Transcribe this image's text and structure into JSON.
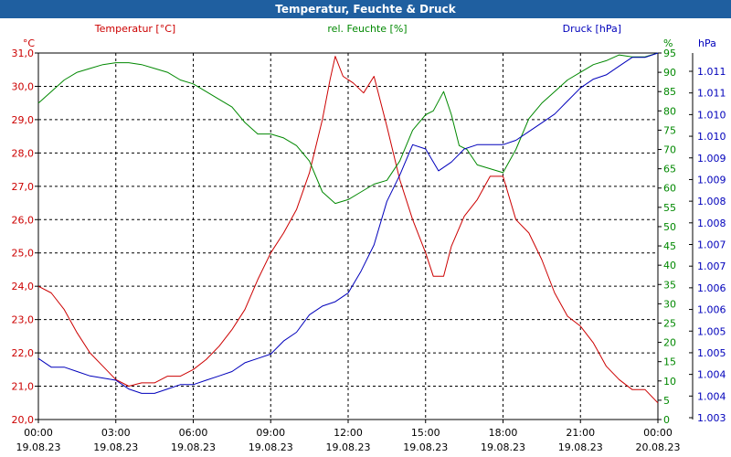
{
  "window": {
    "title": "Temperatur, Feuchte & Druck"
  },
  "colors": {
    "temperature": "#cc0000",
    "humidity": "#008800",
    "pressure": "#0000bb",
    "title_bar": "#1f5fa0"
  },
  "chart_data": {
    "type": "line",
    "title": "Temperatur, Feuchte & Druck",
    "grid": true,
    "x_ticks": [
      {
        "time": "00:00",
        "date": "19.08.23"
      },
      {
        "time": "03:00",
        "date": "19.08.23"
      },
      {
        "time": "06:00",
        "date": "19.08.23"
      },
      {
        "time": "09:00",
        "date": "19.08.23"
      },
      {
        "time": "12:00",
        "date": "19.08.23"
      },
      {
        "time": "15:00",
        "date": "19.08.23"
      },
      {
        "time": "18:00",
        "date": "19.08.23"
      },
      {
        "time": "21:00",
        "date": "19.08.23"
      },
      {
        "time": "00:00",
        "date": "20.08.23"
      }
    ],
    "x_range_hours": [
      0,
      24
    ],
    "axes": {
      "temperature": {
        "unit": "°C",
        "label": "Temperatur [°C]",
        "range": [
          20.0,
          31.0
        ],
        "ticks": [
          "20,0",
          "21,0",
          "22,0",
          "23,0",
          "24,0",
          "25,0",
          "26,0",
          "27,0",
          "28,0",
          "29,0",
          "30,0",
          "31,0"
        ]
      },
      "humidity": {
        "unit": "%",
        "label": "rel. Feuchte [%]",
        "range": [
          0,
          95
        ],
        "ticks": [
          "0",
          "5",
          "10",
          "15",
          "20",
          "25",
          "30",
          "35",
          "40",
          "45",
          "50",
          "55",
          "60",
          "65",
          "70",
          "75",
          "80",
          "85",
          "90",
          "95"
        ]
      },
      "pressure": {
        "unit": "hPa",
        "label": "Druck [hPa]",
        "range": [
          1003,
          1011.4
        ],
        "ticks": [
          "1.003",
          "1.004",
          "1.004",
          "1.005",
          "1.005",
          "1.006",
          "1.006",
          "1.007",
          "1.007",
          "1.008",
          "1.008",
          "1.009",
          "1.009",
          "1.010",
          "1.010",
          "1.011",
          "1.011"
        ]
      }
    },
    "series": [
      {
        "name": "Temperatur [°C]",
        "axis": "temperature",
        "points": [
          [
            0,
            24.0
          ],
          [
            0.5,
            23.8
          ],
          [
            1,
            23.3
          ],
          [
            1.5,
            22.6
          ],
          [
            2,
            22.0
          ],
          [
            2.5,
            21.6
          ],
          [
            3,
            21.2
          ],
          [
            3.5,
            21.0
          ],
          [
            4,
            21.1
          ],
          [
            4.5,
            21.1
          ],
          [
            5,
            21.3
          ],
          [
            5.5,
            21.3
          ],
          [
            6,
            21.5
          ],
          [
            6.5,
            21.8
          ],
          [
            7,
            22.2
          ],
          [
            7.5,
            22.7
          ],
          [
            8,
            23.3
          ],
          [
            8.5,
            24.2
          ],
          [
            9,
            25.0
          ],
          [
            9.5,
            25.6
          ],
          [
            10,
            26.3
          ],
          [
            10.5,
            27.4
          ],
          [
            11,
            29.0
          ],
          [
            11.3,
            30.2
          ],
          [
            11.5,
            30.9
          ],
          [
            11.8,
            30.3
          ],
          [
            12.2,
            30.1
          ],
          [
            12.6,
            29.8
          ],
          [
            13,
            30.3
          ],
          [
            13.5,
            28.8
          ],
          [
            14,
            27.2
          ],
          [
            14.5,
            26.0
          ],
          [
            15,
            25.0
          ],
          [
            15.3,
            24.3
          ],
          [
            15.7,
            24.3
          ],
          [
            16,
            25.2
          ],
          [
            16.5,
            26.1
          ],
          [
            17,
            26.6
          ],
          [
            17.5,
            27.3
          ],
          [
            18,
            27.3
          ],
          [
            18.5,
            26.0
          ],
          [
            19,
            25.6
          ],
          [
            19.5,
            24.8
          ],
          [
            20,
            23.8
          ],
          [
            20.5,
            23.1
          ],
          [
            21,
            22.8
          ],
          [
            21.5,
            22.3
          ],
          [
            22,
            21.6
          ],
          [
            22.5,
            21.2
          ],
          [
            23,
            20.9
          ],
          [
            23.5,
            20.9
          ],
          [
            24,
            20.5
          ]
        ]
      },
      {
        "name": "rel. Feuchte [%]",
        "axis": "humidity",
        "points": [
          [
            0,
            82
          ],
          [
            0.5,
            85
          ],
          [
            1,
            88
          ],
          [
            1.5,
            90
          ],
          [
            2,
            91
          ],
          [
            2.5,
            92
          ],
          [
            3,
            92.5
          ],
          [
            3.5,
            92.5
          ],
          [
            4,
            92
          ],
          [
            4.5,
            91
          ],
          [
            5,
            90
          ],
          [
            5.5,
            88
          ],
          [
            6,
            87
          ],
          [
            6.5,
            85
          ],
          [
            7,
            83
          ],
          [
            7.5,
            81
          ],
          [
            8,
            77
          ],
          [
            8.5,
            74
          ],
          [
            9,
            74
          ],
          [
            9.5,
            73
          ],
          [
            10,
            71
          ],
          [
            10.5,
            67
          ],
          [
            11,
            59
          ],
          [
            11.5,
            56
          ],
          [
            12,
            57
          ],
          [
            12.5,
            59
          ],
          [
            13,
            61
          ],
          [
            13.5,
            62
          ],
          [
            14,
            67
          ],
          [
            14.5,
            75
          ],
          [
            15,
            79
          ],
          [
            15.3,
            80
          ],
          [
            15.7,
            85
          ],
          [
            16,
            79
          ],
          [
            16.3,
            71
          ],
          [
            16.6,
            70
          ],
          [
            17,
            66
          ],
          [
            17.5,
            65
          ],
          [
            18,
            64
          ],
          [
            18.5,
            70
          ],
          [
            19,
            78
          ],
          [
            19.5,
            82
          ],
          [
            20,
            85
          ],
          [
            20.5,
            88
          ],
          [
            21,
            90
          ],
          [
            21.5,
            92
          ],
          [
            22,
            93
          ],
          [
            22.5,
            94.5
          ],
          [
            23,
            94
          ],
          [
            23.5,
            94
          ],
          [
            24,
            95
          ]
        ]
      },
      {
        "name": "Druck [hPa]",
        "axis": "pressure",
        "points": [
          [
            0,
            1004.4
          ],
          [
            0.5,
            1004.2
          ],
          [
            1,
            1004.2
          ],
          [
            1.5,
            1004.1
          ],
          [
            2,
            1004.0
          ],
          [
            2.5,
            1003.95
          ],
          [
            3,
            1003.9
          ],
          [
            3.5,
            1003.7
          ],
          [
            4,
            1003.6
          ],
          [
            4.5,
            1003.6
          ],
          [
            5,
            1003.7
          ],
          [
            5.5,
            1003.8
          ],
          [
            6,
            1003.8
          ],
          [
            6.5,
            1003.9
          ],
          [
            7,
            1004.0
          ],
          [
            7.5,
            1004.1
          ],
          [
            8,
            1004.3
          ],
          [
            8.5,
            1004.4
          ],
          [
            9,
            1004.5
          ],
          [
            9.5,
            1004.8
          ],
          [
            10,
            1005.0
          ],
          [
            10.5,
            1005.4
          ],
          [
            11,
            1005.6
          ],
          [
            11.5,
            1005.7
          ],
          [
            12,
            1005.9
          ],
          [
            12.5,
            1006.4
          ],
          [
            13,
            1007.0
          ],
          [
            13.5,
            1008.0
          ],
          [
            14,
            1008.6
          ],
          [
            14.5,
            1009.3
          ],
          [
            15,
            1009.2
          ],
          [
            15.5,
            1008.7
          ],
          [
            16,
            1008.9
          ],
          [
            16.5,
            1009.2
          ],
          [
            17,
            1009.3
          ],
          [
            17.5,
            1009.3
          ],
          [
            18,
            1009.3
          ],
          [
            18.5,
            1009.4
          ],
          [
            19,
            1009.6
          ],
          [
            19.5,
            1009.8
          ],
          [
            20,
            1010.0
          ],
          [
            20.5,
            1010.3
          ],
          [
            21,
            1010.6
          ],
          [
            21.5,
            1010.8
          ],
          [
            22,
            1010.9
          ],
          [
            22.5,
            1011.1
          ],
          [
            23,
            1011.3
          ],
          [
            23.5,
            1011.3
          ],
          [
            24,
            1011.4
          ]
        ]
      }
    ]
  }
}
